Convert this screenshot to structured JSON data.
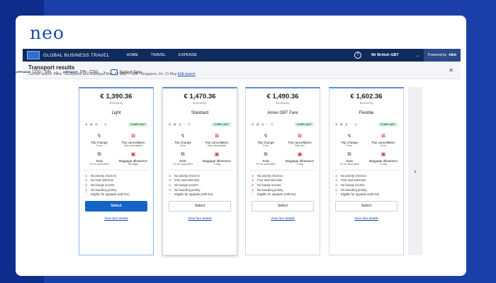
{
  "brand": "neo",
  "topbar": {
    "title": "GLOBAL BUSINESS TRAVEL",
    "nav": [
      "HOME",
      "TRAVEL",
      "EXPENSE"
    ],
    "user": "Mr British GBT",
    "powered_label": "Powered by",
    "powered_brand": "neo"
  },
  "results": {
    "heading": "Transport results",
    "search_prefix": "Current search: Paris - All Airports and Railways, Mon, 17 May — SIN - Singapore, Fri, 21 May",
    "edit_link": "Edit search"
  },
  "breadcrumb": {
    "leg1": "CDG - SIN",
    "leg2": "SIN - CDG",
    "current": "Select fare",
    "airline": "AIRFRANCE"
  },
  "fares": [
    {
      "price": "€ 1,390.36",
      "cabin": "Economy",
      "name": "Light",
      "badge": "COMPLIANT",
      "features": [
        {
          "title": "Trip change",
          "sub": "Free"
        },
        {
          "title": "Trip cancellation",
          "sub": "Non refundable"
        },
        {
          "title": "Seat",
          "sub": "79 cm seat pitch"
        },
        {
          "title": "Baggage allowance",
          "sub": "No bags"
        }
      ],
      "bullets": [
        "No priority check-in",
        "No seat selection",
        "No lounge access",
        "No boarding priority",
        "Eligible for upgrade (with fee)"
      ],
      "select": "Select",
      "details": "View fare details"
    },
    {
      "price": "€ 1,470.36",
      "cabin": "Economy",
      "name": "Standard",
      "badge": "COMPLIANT",
      "features": [
        {
          "title": "Trip change",
          "sub": "Free"
        },
        {
          "title": "Trip cancellation",
          "sub": "Non refundable"
        },
        {
          "title": "Seat",
          "sub": "79 cm seat pitch"
        },
        {
          "title": "Baggage allowance",
          "sub": "1 bag"
        }
      ],
      "bullets": [
        "No priority check-in",
        "Free seat selection",
        "No lounge access",
        "No boarding priority",
        "Eligible for upgrade (with fee)"
      ],
      "select": "Select",
      "details": "View fare details"
    },
    {
      "price": "€ 1,490.36",
      "cabin": "Economy",
      "name": "Amex GBT Fare",
      "badge": "COMPLIANT",
      "features": [
        {
          "title": "Trip change",
          "sub": "Free"
        },
        {
          "title": "Trip cancellation",
          "sub": "With fee"
        },
        {
          "title": "Seat",
          "sub": "79 cm seat pitch"
        },
        {
          "title": "Baggage allowance",
          "sub": "1 bag"
        }
      ],
      "bullets": [
        "No priority check-in",
        "Free seat selection",
        "No lounge access",
        "No boarding priority",
        "Eligible for upgrade (with fee)"
      ],
      "select": "Select",
      "details": "View fare details"
    },
    {
      "price": "€ 1,602.36",
      "cabin": "Economy",
      "name": "Flexible",
      "badge": "COMPLIANT",
      "features": [
        {
          "title": "Trip change",
          "sub": "Free"
        },
        {
          "title": "Trip cancellation",
          "sub": "Free"
        },
        {
          "title": "Seat",
          "sub": "79 cm seat pitch"
        },
        {
          "title": "Baggage allowance",
          "sub": "1 bag"
        }
      ],
      "bullets": [
        "No priority check-in",
        "Free seat selection",
        "No lounge access",
        "No boarding priority",
        "Eligible for upgrade (with fee)"
      ],
      "select": "Select",
      "details": "View fare details"
    }
  ],
  "colors": {
    "accent": "#1464c8",
    "navy": "#0f2a5c",
    "compliant": "#1b7a42"
  }
}
